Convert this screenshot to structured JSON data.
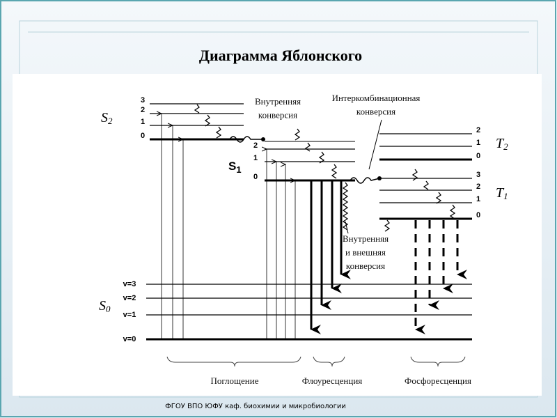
{
  "title": "Диаграмма Яблонского",
  "footer": "ФГОУ ВПО ЮФУ каф. биохимии и микробиологии",
  "states": [
    {
      "symbol": "S",
      "sub": "2",
      "levels": [
        3,
        2,
        1,
        0
      ]
    },
    {
      "symbol": "S",
      "sub": "1",
      "levels": [
        2,
        1,
        0
      ]
    },
    {
      "symbol": "S",
      "sub": "0",
      "levels": [
        "v=3",
        "v=2",
        "v=1",
        "v=0"
      ]
    },
    {
      "symbol": "T",
      "sub": "2",
      "levels": [
        2,
        1,
        0
      ]
    },
    {
      "symbol": "T",
      "sub": "1",
      "levels": [
        3,
        2,
        1,
        0
      ]
    }
  ],
  "annotations": [
    {
      "lines": [
        "Внутренняя",
        "конверсия"
      ]
    },
    {
      "lines": [
        "Интеркомбинационная",
        "конверсия"
      ]
    },
    {
      "lines": [
        "Внутренняя",
        "и внешняя",
        "конверсия"
      ]
    }
  ],
  "processes": [
    "Поглощение",
    "Флоуресценция",
    "Фосфоресценция"
  ]
}
